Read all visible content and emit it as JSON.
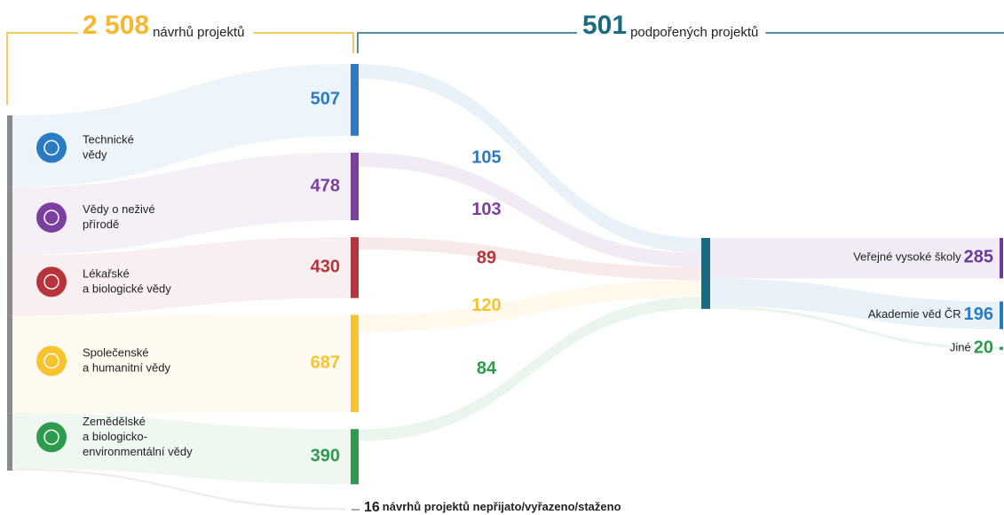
{
  "chart_data": {
    "type": "sankey",
    "header_left": {
      "value": {
        "value": 2508,
        "label": "2 508"
      },
      "text": "návrhů projektů",
      "color": "#f5b82e"
    },
    "header_right": {
      "value": 501,
      "text": "podpořených projektů",
      "color": "#1d6a80"
    },
    "sources": [
      {
        "lines": [
          "Technické",
          "vědy"
        ],
        "color": "#2b7bc4",
        "proposed": 507,
        "supported": 105
      },
      {
        "lines": [
          "Vědy o neživé",
          "přírodě"
        ],
        "color": "#7b3fa0",
        "proposed": 478,
        "supported": 103
      },
      {
        "lines": [
          "Lékařské",
          "a biologické vědy"
        ],
        "color": "#b8343c",
        "proposed": 430,
        "supported": 89
      },
      {
        "lines": [
          "Společenské",
          "a humanitní vědy"
        ],
        "color": "#f7c32e",
        "proposed": 687,
        "supported": 120
      },
      {
        "lines": [
          "Zemědělské",
          "a biologicko-",
          "environmentální vědy"
        ],
        "color": "#2e9a4d",
        "proposed": 390,
        "supported": 84
      }
    ],
    "targets": [
      {
        "name": "Veřejné vysoké školy",
        "value": 285,
        "color": "#6b3a96"
      },
      {
        "name": "Akademie věd ČR",
        "value": 196,
        "color": "#2b7bc4"
      },
      {
        "name": "Jiné",
        "value": 20,
        "color": "#2e9a4d"
      }
    ],
    "rejected": {
      "value": 16,
      "text": "návrhů projektů nepřijato/vyřazeno/staženo"
    }
  }
}
